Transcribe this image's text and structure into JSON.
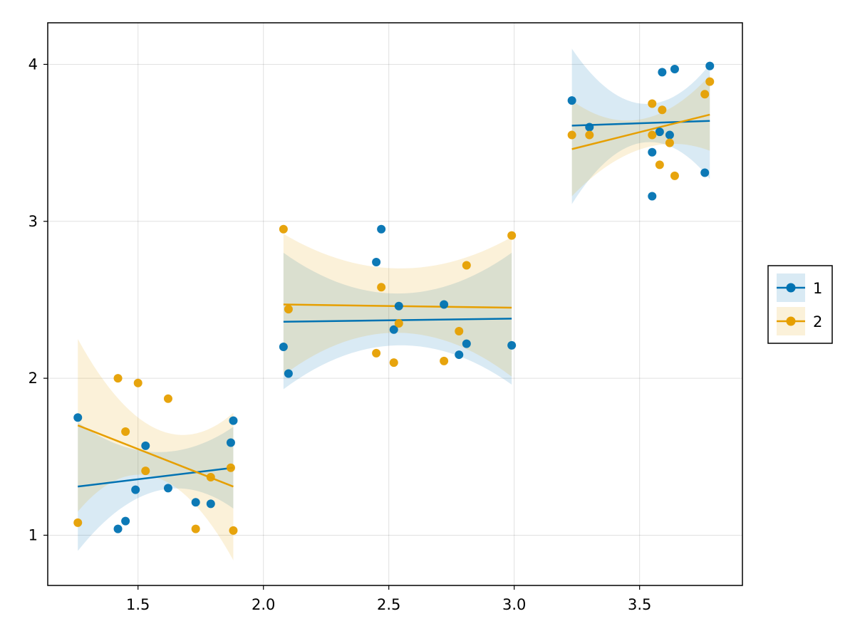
{
  "chart_data": {
    "type": "scatter",
    "xlim": [
      1.14,
      3.91
    ],
    "ylim": [
      0.68,
      4.265
    ],
    "x_ticks": [
      1.5,
      2.0,
      2.5,
      3.0,
      3.5
    ],
    "x_tick_labels": [
      "1.5",
      "2.0",
      "2.5",
      "3.0",
      "3.5"
    ],
    "y_ticks": [
      1,
      2,
      3,
      4
    ],
    "y_tick_labels": [
      "1",
      "2",
      "3",
      "4"
    ],
    "grid": true,
    "legend_position": "right",
    "series": [
      {
        "name": "1",
        "color": "#0072b2",
        "groups": [
          {
            "x_range": [
              1.26,
              1.88
            ],
            "fit": [
              1.31,
              1.43
            ],
            "band_lower": [
              0.9,
              1.28,
              1.17
            ],
            "band_upper": [
              1.72,
              1.53,
              1.69
            ],
            "points": [
              [
                1.26,
                1.75
              ],
              [
                1.42,
                1.04
              ],
              [
                1.45,
                1.09
              ],
              [
                1.49,
                1.29
              ],
              [
                1.53,
                1.57
              ],
              [
                1.62,
                1.3
              ],
              [
                1.73,
                1.21
              ],
              [
                1.79,
                1.2
              ],
              [
                1.87,
                1.59
              ],
              [
                1.88,
                1.73
              ]
            ]
          },
          {
            "x_range": [
              2.08,
              2.99
            ],
            "fit": [
              2.36,
              2.38
            ],
            "band_lower": [
              1.93,
              2.21,
              1.96
            ],
            "band_upper": [
              2.8,
              2.54,
              2.8
            ],
            "points": [
              [
                2.08,
                2.2
              ],
              [
                2.1,
                2.03
              ],
              [
                2.45,
                2.74
              ],
              [
                2.47,
                2.95
              ],
              [
                2.52,
                2.31
              ],
              [
                2.54,
                2.46
              ],
              [
                2.72,
                2.47
              ],
              [
                2.78,
                2.15
              ],
              [
                2.81,
                2.22
              ],
              [
                2.99,
                2.21
              ]
            ]
          },
          {
            "x_range": [
              3.23,
              3.78
            ],
            "fit": [
              3.61,
              3.64
            ],
            "band_lower": [
              3.11,
              3.5,
              3.27
            ],
            "band_upper": [
              4.1,
              3.75,
              4.0
            ],
            "points": [
              [
                3.23,
                3.77
              ],
              [
                3.3,
                3.6
              ],
              [
                3.55,
                3.44
              ],
              [
                3.55,
                3.16
              ],
              [
                3.58,
                3.57
              ],
              [
                3.59,
                3.95
              ],
              [
                3.62,
                3.55
              ],
              [
                3.64,
                3.97
              ],
              [
                3.76,
                3.31
              ],
              [
                3.78,
                3.99
              ]
            ]
          }
        ]
      },
      {
        "name": "2",
        "color": "#e69f00",
        "groups": [
          {
            "x_range": [
              1.26,
              1.88
            ],
            "fit": [
              1.7,
              1.31
            ],
            "band_lower": [
              1.15,
              1.37,
              0.84
            ],
            "band_upper": [
              2.25,
              1.68,
              1.78
            ],
            "points": [
              [
                1.26,
                1.08
              ],
              [
                1.42,
                2.0
              ],
              [
                1.45,
                1.66
              ],
              [
                1.5,
                1.97
              ],
              [
                1.53,
                1.41
              ],
              [
                1.62,
                1.87
              ],
              [
                1.73,
                1.04
              ],
              [
                1.79,
                1.37
              ],
              [
                1.87,
                1.43
              ],
              [
                1.88,
                1.03
              ]
            ]
          },
          {
            "x_range": [
              2.08,
              2.99
            ],
            "fit": [
              2.47,
              2.45
            ],
            "band_lower": [
              2.02,
              2.29,
              2.01
            ],
            "band_upper": [
              2.92,
              2.7,
              2.9
            ],
            "points": [
              [
                2.08,
                2.95
              ],
              [
                2.1,
                2.44
              ],
              [
                2.45,
                2.16
              ],
              [
                2.47,
                2.58
              ],
              [
                2.52,
                2.1
              ],
              [
                2.54,
                2.35
              ],
              [
                2.72,
                2.11
              ],
              [
                2.78,
                2.3
              ],
              [
                2.81,
                2.72
              ],
              [
                2.99,
                2.91
              ]
            ]
          },
          {
            "x_range": [
              3.23,
              3.78
            ],
            "fit": [
              3.46,
              3.68
            ],
            "band_lower": [
              3.16,
              3.46,
              3.45
            ],
            "band_upper": [
              3.77,
              3.65,
              3.93
            ],
            "points": [
              [
                3.23,
                3.55
              ],
              [
                3.3,
                3.55
              ],
              [
                3.55,
                3.55
              ],
              [
                3.55,
                3.75
              ],
              [
                3.58,
                3.36
              ],
              [
                3.59,
                3.71
              ],
              [
                3.62,
                3.5
              ],
              [
                3.64,
                3.29
              ],
              [
                3.76,
                3.81
              ],
              [
                3.78,
                3.89
              ]
            ]
          }
        ]
      }
    ]
  }
}
